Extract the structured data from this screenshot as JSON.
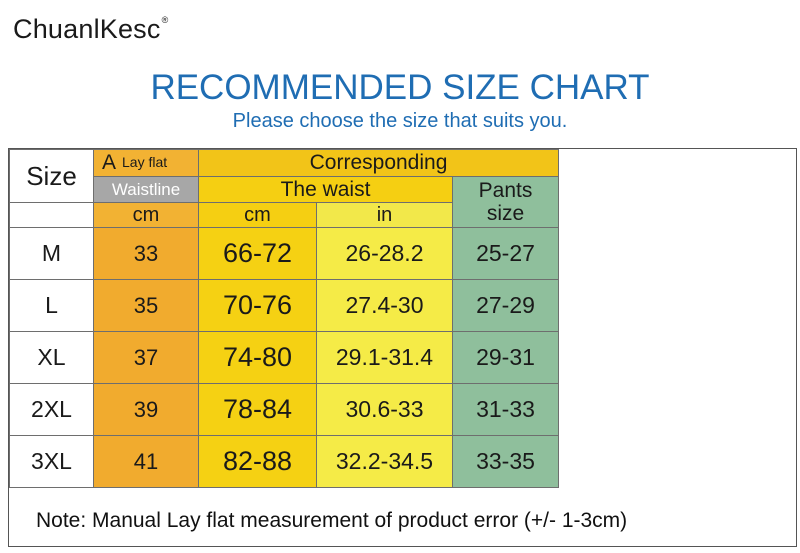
{
  "brand": {
    "name": "ChuanlKesc",
    "reg_mark": "®"
  },
  "title": "RECOMMENDED SIZE CHART",
  "subtitle": "Please choose the size that suits you.",
  "table": {
    "size_header": "Size",
    "lay_flat_letter": "A",
    "lay_flat_text": "Lay flat",
    "waistline": "Waistline",
    "corresponding": "Corresponding",
    "the_waist": "The waist",
    "pants": "Pants",
    "size_word": "size",
    "unit_cm_1": "cm",
    "unit_cm_2": "cm",
    "unit_in": "in",
    "rows": [
      {
        "size": "M",
        "flat": "33",
        "cm": "66-72",
        "in": "26-28.2",
        "pants": "25-27"
      },
      {
        "size": "L",
        "flat": "35",
        "cm": "70-76",
        "in": "27.4-30",
        "pants": "27-29"
      },
      {
        "size": "XL",
        "flat": "37",
        "cm": "74-80",
        "in": "29.1-31.4",
        "pants": "29-31"
      },
      {
        "size": "2XL",
        "flat": "39",
        "cm": "78-84",
        "in": "30.6-33",
        "pants": "31-33"
      },
      {
        "size": "3XL",
        "flat": "41",
        "cm": "82-88",
        "in": "32.2-34.5",
        "pants": "33-35"
      }
    ]
  },
  "diagram": {
    "marker": "A",
    "marker_color": "#f5c22a",
    "line_color": "#e04040"
  },
  "note": "Note: Manual Lay flat measurement of product error (+/-  1-3cm)",
  "colors": {
    "title_blue": "#1f6db3",
    "orange": "#f2b233",
    "yellow": "#f5cf12",
    "light_yellow": "#f2e84a",
    "green": "#8fbf9c",
    "gray": "#a7a7a7"
  }
}
